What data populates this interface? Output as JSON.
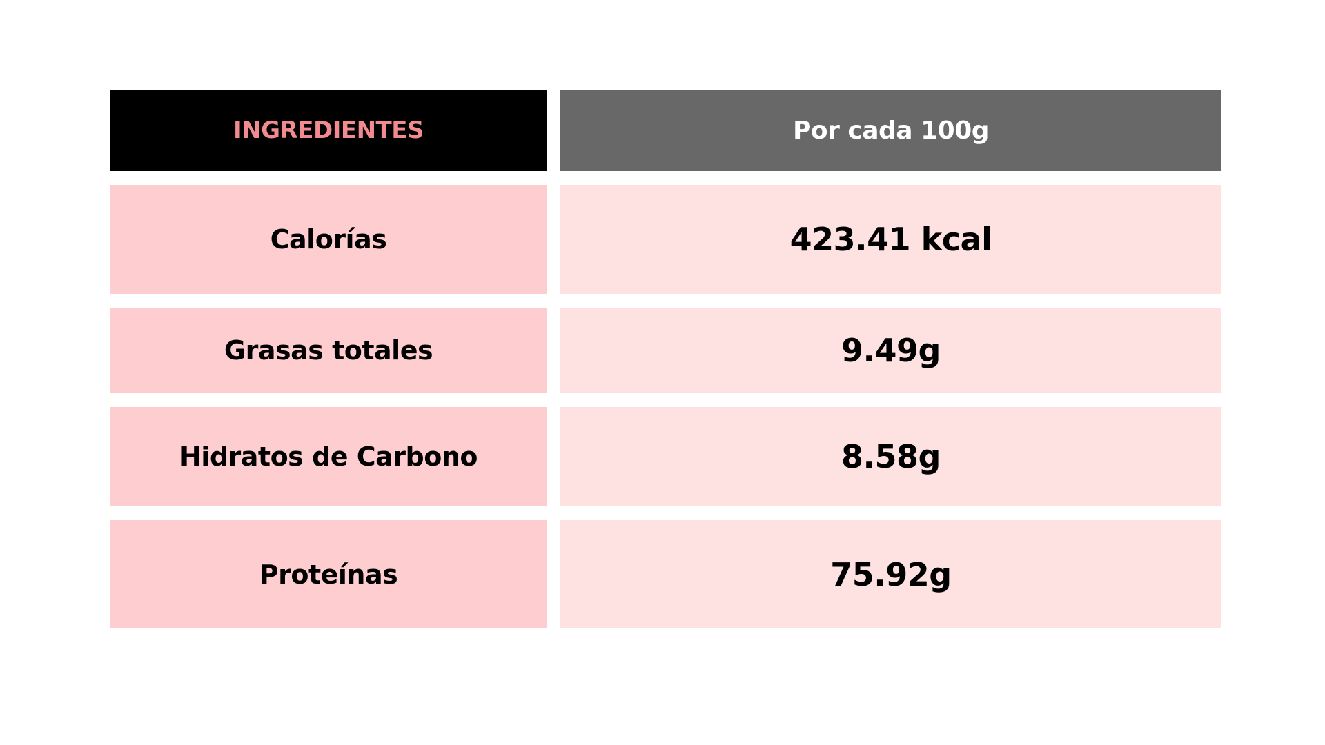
{
  "table": {
    "header": {
      "left": "INGREDIENTES",
      "right": "Por cada 100g"
    },
    "rows": [
      {
        "label": "Calorías",
        "value": "423.41 kcal"
      },
      {
        "label": "Grasas totales",
        "value": "9.49g"
      },
      {
        "label": "Hidratos de Carbono",
        "value": "8.58g"
      },
      {
        "label": "Proteínas",
        "value": "75.92g"
      }
    ]
  },
  "colors": {
    "header_left_bg": "#000000",
    "header_left_text": "#f28b8f",
    "header_right_bg": "#686868",
    "label_bg": "#fdcdcf",
    "value_bg": "#fee2e2"
  }
}
